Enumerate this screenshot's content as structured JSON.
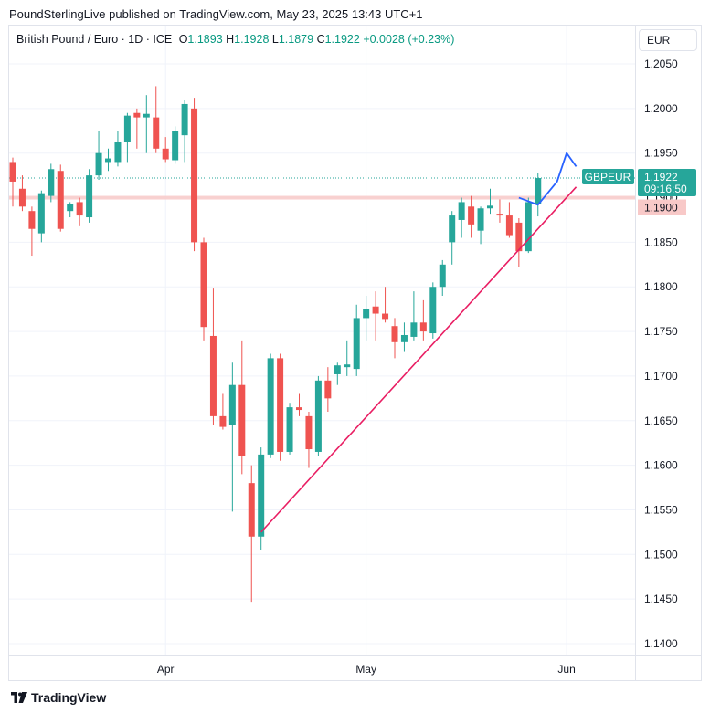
{
  "header": {
    "published": "PoundSterlingLive published on TradingView.com, May 23, 2025 13:43 UTC+1"
  },
  "legend": {
    "symbol": "British Pound / Euro · 1D · ICE",
    "o_label": "O",
    "o_value": "1.1893",
    "h_label": "H",
    "h_value": "1.1928",
    "l_label": "L",
    "l_value": "1.1879",
    "c_label": "C",
    "c_value": "1.1922",
    "change": "+0.0028 (+0.23%)"
  },
  "currency_button": "EUR",
  "price_tag": {
    "symbol": "GBPEUR",
    "price": "1.1922",
    "countdown": "09:16:50"
  },
  "level_tag": {
    "price": "1.1900"
  },
  "footer": {
    "brand": "TradingView"
  },
  "colors": {
    "up": "#26a69a",
    "down": "#ef5350",
    "trendline": "#e91e63",
    "arrow": "#2962ff",
    "level": "#f8c9c8"
  },
  "chart_data": {
    "type": "candlestick",
    "ylim": [
      1.138,
      1.2085
    ],
    "yticks": [
      "1.1400",
      "1.1450",
      "1.1500",
      "1.1550",
      "1.1600",
      "1.1650",
      "1.1700",
      "1.1750",
      "1.1800",
      "1.1850",
      "1.1900",
      "1.1950",
      "1.2000",
      "1.2050"
    ],
    "xticks": [
      {
        "label": "Apr",
        "index": 16
      },
      {
        "label": "May",
        "index": 37
      },
      {
        "label": "Jun",
        "index": 58
      }
    ],
    "grid": true,
    "candles": [
      {
        "o": 1.194,
        "h": 1.1945,
        "l": 1.189,
        "c": 1.1918
      },
      {
        "o": 1.191,
        "h": 1.1925,
        "l": 1.1885,
        "c": 1.189
      },
      {
        "o": 1.1885,
        "h": 1.189,
        "l": 1.1835,
        "c": 1.1865
      },
      {
        "o": 1.186,
        "h": 1.1908,
        "l": 1.185,
        "c": 1.1905
      },
      {
        "o": 1.1902,
        "h": 1.1938,
        "l": 1.1895,
        "c": 1.1932
      },
      {
        "o": 1.193,
        "h": 1.1937,
        "l": 1.1862,
        "c": 1.1865
      },
      {
        "o": 1.1885,
        "h": 1.1895,
        "l": 1.1878,
        "c": 1.1893
      },
      {
        "o": 1.1895,
        "h": 1.19,
        "l": 1.1868,
        "c": 1.188
      },
      {
        "o": 1.1878,
        "h": 1.1932,
        "l": 1.1872,
        "c": 1.1925
      },
      {
        "o": 1.1925,
        "h": 1.1975,
        "l": 1.192,
        "c": 1.195
      },
      {
        "o": 1.194,
        "h": 1.1955,
        "l": 1.193,
        "c": 1.1944
      },
      {
        "o": 1.194,
        "h": 1.1975,
        "l": 1.1935,
        "c": 1.1963
      },
      {
        "o": 1.1963,
        "h": 1.1995,
        "l": 1.194,
        "c": 1.1992
      },
      {
        "o": 1.1995,
        "h": 1.2,
        "l": 1.1955,
        "c": 1.199
      },
      {
        "o": 1.199,
        "h": 1.2015,
        "l": 1.195,
        "c": 1.1994
      },
      {
        "o": 1.199,
        "h": 1.2025,
        "l": 1.195,
        "c": 1.1955
      },
      {
        "o": 1.1955,
        "h": 1.1968,
        "l": 1.194,
        "c": 1.1943
      },
      {
        "o": 1.1942,
        "h": 1.198,
        "l": 1.1938,
        "c": 1.1975
      },
      {
        "o": 1.197,
        "h": 1.201,
        "l": 1.194,
        "c": 1.2005
      },
      {
        "o": 1.2,
        "h": 1.2012,
        "l": 1.184,
        "c": 1.185
      },
      {
        "o": 1.185,
        "h": 1.1855,
        "l": 1.174,
        "c": 1.1755
      },
      {
        "o": 1.1745,
        "h": 1.1798,
        "l": 1.1645,
        "c": 1.1655
      },
      {
        "o": 1.1655,
        "h": 1.168,
        "l": 1.164,
        "c": 1.1643
      },
      {
        "o": 1.1645,
        "h": 1.1715,
        "l": 1.1548,
        "c": 1.169
      },
      {
        "o": 1.169,
        "h": 1.174,
        "l": 1.159,
        "c": 1.161
      },
      {
        "o": 1.158,
        "h": 1.16,
        "l": 1.1447,
        "c": 1.152
      },
      {
        "o": 1.152,
        "h": 1.162,
        "l": 1.1505,
        "c": 1.1612
      },
      {
        "o": 1.1612,
        "h": 1.1725,
        "l": 1.1608,
        "c": 1.172
      },
      {
        "o": 1.172,
        "h": 1.1725,
        "l": 1.1605,
        "c": 1.1615
      },
      {
        "o": 1.1615,
        "h": 1.167,
        "l": 1.1612,
        "c": 1.1665
      },
      {
        "o": 1.1665,
        "h": 1.168,
        "l": 1.1655,
        "c": 1.1662
      },
      {
        "o": 1.1655,
        "h": 1.166,
        "l": 1.1597,
        "c": 1.1618
      },
      {
        "o": 1.1615,
        "h": 1.17,
        "l": 1.161,
        "c": 1.1695
      },
      {
        "o": 1.1695,
        "h": 1.171,
        "l": 1.166,
        "c": 1.1675
      },
      {
        "o": 1.1702,
        "h": 1.1715,
        "l": 1.169,
        "c": 1.1712
      },
      {
        "o": 1.171,
        "h": 1.174,
        "l": 1.17,
        "c": 1.1713
      },
      {
        "o": 1.1708,
        "h": 1.178,
        "l": 1.17,
        "c": 1.1765
      },
      {
        "o": 1.1765,
        "h": 1.179,
        "l": 1.174,
        "c": 1.1775
      },
      {
        "o": 1.1778,
        "h": 1.1795,
        "l": 1.174,
        "c": 1.177
      },
      {
        "o": 1.177,
        "h": 1.18,
        "l": 1.176,
        "c": 1.1764
      },
      {
        "o": 1.1756,
        "h": 1.1765,
        "l": 1.172,
        "c": 1.1738
      },
      {
        "o": 1.1738,
        "h": 1.176,
        "l": 1.1727,
        "c": 1.1746
      },
      {
        "o": 1.1744,
        "h": 1.1795,
        "l": 1.174,
        "c": 1.176
      },
      {
        "o": 1.176,
        "h": 1.1785,
        "l": 1.174,
        "c": 1.175
      },
      {
        "o": 1.1748,
        "h": 1.1805,
        "l": 1.1742,
        "c": 1.18
      },
      {
        "o": 1.18,
        "h": 1.183,
        "l": 1.179,
        "c": 1.1825
      },
      {
        "o": 1.185,
        "h": 1.1885,
        "l": 1.1825,
        "c": 1.188
      },
      {
        "o": 1.1875,
        "h": 1.19,
        "l": 1.1855,
        "c": 1.1895
      },
      {
        "o": 1.189,
        "h": 1.1902,
        "l": 1.1855,
        "c": 1.187
      },
      {
        "o": 1.1863,
        "h": 1.189,
        "l": 1.1848,
        "c": 1.1888
      },
      {
        "o": 1.1888,
        "h": 1.191,
        "l": 1.1882,
        "c": 1.1891
      },
      {
        "o": 1.1882,
        "h": 1.1898,
        "l": 1.1872,
        "c": 1.188
      },
      {
        "o": 1.188,
        "h": 1.1895,
        "l": 1.1855,
        "c": 1.1858
      },
      {
        "o": 1.1872,
        "h": 1.1877,
        "l": 1.1822,
        "c": 1.184
      },
      {
        "o": 1.184,
        "h": 1.19,
        "l": 1.1838,
        "c": 1.1895
      },
      {
        "o": 1.1893,
        "h": 1.1928,
        "l": 1.1879,
        "c": 1.1922
      }
    ],
    "lines": [
      {
        "name": "trendline",
        "points": [
          [
            26,
            1.1525
          ],
          [
            59,
            1.1912
          ]
        ]
      },
      {
        "name": "level",
        "points": [
          [
            0,
            1.19
          ],
          [
            70,
            1.19
          ]
        ]
      }
    ],
    "projection": [
      [
        53,
        1.19
      ],
      [
        55,
        1.1892
      ],
      [
        57,
        1.1918
      ],
      [
        58,
        1.195
      ],
      [
        59,
        1.1935
      ]
    ]
  }
}
